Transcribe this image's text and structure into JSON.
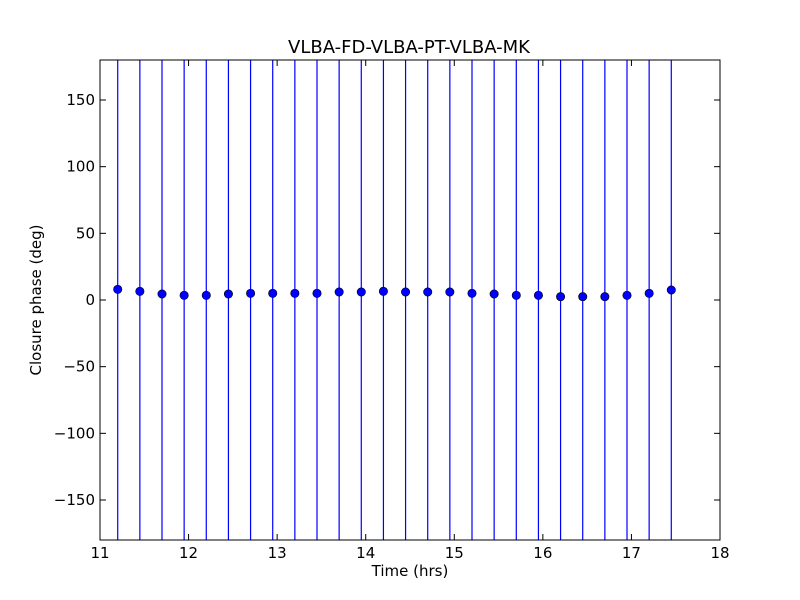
{
  "chart_data": {
    "type": "scatter",
    "title": "VLBA-FD-VLBA-PT-VLBA-MK",
    "xlabel": "Time (hrs)",
    "ylabel": "Closure phase (deg)",
    "xlim": [
      11,
      18
    ],
    "ylim": [
      -180,
      180
    ],
    "xticks": [
      11,
      12,
      13,
      14,
      15,
      16,
      17,
      18
    ],
    "yticks": [
      -150,
      -100,
      -50,
      0,
      50,
      100,
      150
    ],
    "xtick_labels": [
      "11",
      "12",
      "13",
      "14",
      "15",
      "16",
      "17",
      "18"
    ],
    "ytick_labels": [
      "−150",
      "−100",
      "−50",
      "0",
      "50",
      "100",
      "150"
    ],
    "grid": false,
    "colors": {
      "marker": "#0000ff",
      "errorbar": "#0000ff",
      "axes": "#000000"
    },
    "error_bars": "span full y-range",
    "series": [
      {
        "x": [
          11.2,
          11.45,
          11.7,
          11.95,
          12.2,
          12.45,
          12.7,
          12.95,
          13.2,
          13.45,
          13.7,
          13.95,
          14.2,
          14.45,
          14.7,
          14.95,
          15.2,
          15.45,
          15.7,
          15.95,
          16.2,
          16.45,
          16.7,
          16.95,
          17.2,
          17.45
        ],
        "y": [
          8,
          6.5,
          4.5,
          3.5,
          3.5,
          4.5,
          5,
          5,
          5,
          5,
          6,
          6,
          6.5,
          6,
          6,
          6,
          5,
          4.5,
          3.5,
          3.5,
          2.5,
          2.5,
          2.5,
          3.5,
          5,
          7.5
        ]
      }
    ]
  }
}
